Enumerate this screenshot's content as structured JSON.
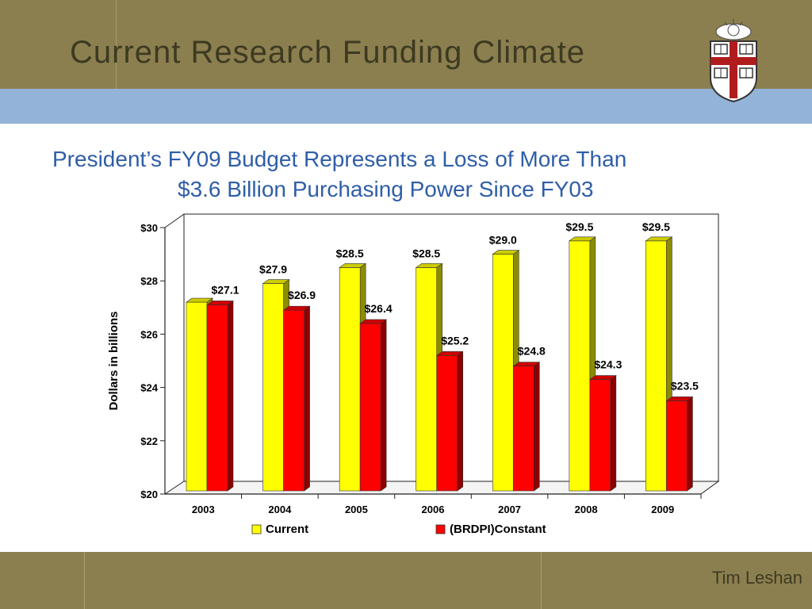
{
  "slide": {
    "title": "Current Research Funding Climate",
    "subtitle_line1": "President’s FY09 Budget Represents a Loss of More Than",
    "subtitle_line2": "$3.6 Billion Purchasing Power Since FY03",
    "author": "Tim Leshan"
  },
  "colors": {
    "header": "#8c7f4f",
    "band": "#94b3d8",
    "subtitle": "#2f5ea8",
    "series_current": "#ffff00",
    "series_constant": "#ff0000"
  },
  "icons": {
    "logo": "university-shield-logo"
  },
  "chart_data": {
    "type": "bar",
    "categories": [
      "2003",
      "2004",
      "2005",
      "2006",
      "2007",
      "2008",
      "2009"
    ],
    "series": [
      {
        "name": "Current",
        "color": "#ffff00",
        "values": [
          27.2,
          27.9,
          28.5,
          28.5,
          29.0,
          29.5,
          29.5
        ],
        "labels": [
          "",
          "$27.9",
          "$28.5",
          "$28.5",
          "$29.0",
          "$29.5",
          "$29.5"
        ]
      },
      {
        "name": "(BRDPI)Constant",
        "color": "#ff0000",
        "values": [
          27.1,
          26.9,
          26.4,
          25.2,
          24.8,
          24.3,
          23.5
        ],
        "labels": [
          "$27.1",
          "$26.9",
          "$26.4",
          "$25.2",
          "$24.8",
          "$24.3",
          "$23.5"
        ]
      }
    ],
    "ylabel": "Dollars in billions",
    "xlabel": "",
    "ylim": [
      20,
      30
    ],
    "yticks": [
      20,
      22,
      24,
      26,
      28,
      30
    ],
    "ytick_labels": [
      "$20",
      "$22",
      "$24",
      "$26",
      "$28",
      "$30"
    ],
    "legend_position": "bottom",
    "grid": false
  }
}
